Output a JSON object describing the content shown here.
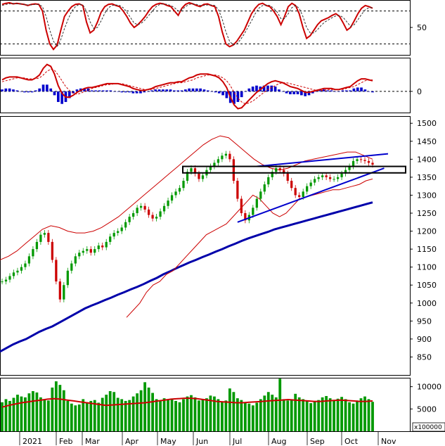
{
  "chart_data": [
    {
      "panel": "stochastic-oscillator",
      "type": "line",
      "y_ticks": [
        "50"
      ],
      "reference_levels": [
        80,
        20
      ],
      "ylim": [
        0,
        100
      ],
      "series": [
        {
          "color": "#cc0000",
          "style": "solid",
          "values": [
            92,
            94,
            95,
            93,
            94,
            93,
            92,
            90,
            92,
            93,
            92,
            80,
            45,
            20,
            10,
            18,
            45,
            70,
            80,
            88,
            92,
            93,
            90,
            60,
            40,
            45,
            60,
            78,
            88,
            92,
            93,
            90,
            88,
            80,
            70,
            58,
            50,
            55,
            62,
            70,
            80,
            88,
            92,
            94,
            93,
            90,
            88,
            80,
            72,
            85,
            92,
            95,
            93,
            90,
            88,
            92,
            93,
            90,
            88,
            70,
            42,
            20,
            15,
            18,
            25,
            35,
            45,
            60,
            75,
            85,
            92,
            94,
            90,
            88,
            80,
            70,
            55,
            70,
            88,
            94,
            90,
            75,
            50,
            30,
            35,
            45,
            55,
            62,
            65,
            68,
            72,
            75,
            70,
            58,
            45,
            50,
            62,
            75,
            85,
            90,
            88,
            85
          ]
        },
        {
          "color": "#333333",
          "style": "dashed",
          "values": [
            90,
            92,
            93,
            94,
            93,
            93,
            92,
            91,
            91,
            92,
            92,
            88,
            70,
            45,
            25,
            15,
            28,
            48,
            65,
            80,
            88,
            92,
            91,
            80,
            60,
            48,
            50,
            62,
            76,
            86,
            90,
            91,
            90,
            86,
            78,
            68,
            58,
            55,
            58,
            64,
            72,
            80,
            88,
            92,
            93,
            92,
            90,
            86,
            80,
            82,
            88,
            92,
            93,
            92,
            90,
            90,
            91,
            91,
            90,
            82,
            65,
            42,
            25,
            18,
            20,
            28,
            38,
            50,
            62,
            75,
            85,
            90,
            91,
            90,
            85,
            78,
            66,
            66,
            75,
            86,
            90,
            85,
            70,
            50,
            40,
            40,
            46,
            54,
            60,
            64,
            68,
            71,
            72,
            68,
            60,
            52,
            55,
            64,
            74,
            82,
            86,
            86
          ]
        }
      ]
    },
    {
      "panel": "macd",
      "type": "line",
      "y_ticks": [
        "0"
      ],
      "ylim": [
        -22,
        35
      ],
      "series": [
        {
          "color": "#cc0000",
          "style": "solid",
          "values": [
            12,
            14,
            15,
            15,
            15,
            14,
            13,
            12,
            12,
            14,
            17,
            24,
            28,
            26,
            18,
            6,
            -2,
            -6,
            -6,
            -4,
            -1,
            1,
            3,
            4,
            4,
            5,
            6,
            7,
            8,
            8,
            8,
            8,
            7,
            6,
            5,
            3,
            2,
            1,
            1,
            2,
            3,
            5,
            6,
            7,
            8,
            9,
            9,
            10,
            10,
            12,
            14,
            15,
            17,
            18,
            18,
            18,
            17,
            16,
            14,
            10,
            4,
            -6,
            -14,
            -18,
            -17,
            -13,
            -9,
            -5,
            -1,
            2,
            5,
            8,
            10,
            11,
            10,
            9,
            7,
            5,
            4,
            3,
            1,
            -1,
            -1,
            0,
            1,
            2,
            3,
            3,
            3,
            2,
            2,
            3,
            4,
            5,
            8,
            11,
            13,
            13,
            12,
            11
          ]
        },
        {
          "color": "#cc0000",
          "style": "dashed",
          "values": [
            10,
            11,
            12,
            13,
            14,
            14,
            14,
            13,
            13,
            13,
            14,
            17,
            21,
            23,
            22,
            17,
            11,
            5,
            1,
            -2,
            -3,
            -2,
            0,
            1,
            3,
            4,
            5,
            6,
            7,
            7,
            8,
            8,
            8,
            7,
            6,
            5,
            4,
            3,
            2,
            2,
            2,
            3,
            4,
            5,
            6,
            7,
            8,
            9,
            9,
            10,
            11,
            12,
            14,
            15,
            16,
            17,
            17,
            17,
            16,
            14,
            11,
            6,
            -1,
            -7,
            -11,
            -13,
            -12,
            -10,
            -7,
            -4,
            -1,
            2,
            4,
            6,
            8,
            9,
            9,
            8,
            7,
            6,
            5,
            4,
            3,
            2,
            1,
            1,
            1,
            2,
            2,
            2,
            2,
            2,
            3,
            4,
            5,
            7,
            9,
            11,
            12,
            12
          ]
        }
      ],
      "histogram": {
        "color": "#0000cc",
        "values": [
          2,
          3,
          3,
          2,
          1,
          0,
          -1,
          -1,
          -1,
          1,
          3,
          7,
          7,
          3,
          -4,
          -11,
          -13,
          -11,
          -7,
          -2,
          2,
          3,
          3,
          3,
          1,
          1,
          1,
          1,
          1,
          1,
          0,
          0,
          -1,
          -1,
          -1,
          -2,
          -2,
          -2,
          -1,
          0,
          1,
          2,
          2,
          2,
          2,
          2,
          1,
          1,
          1,
          2,
          3,
          3,
          3,
          3,
          2,
          1,
          0,
          -1,
          -2,
          -4,
          -7,
          -12,
          -13,
          -11,
          -6,
          0,
          3,
          5,
          6,
          5,
          6,
          6,
          6,
          5,
          2,
          0,
          -2,
          -3,
          -3,
          -3,
          -4,
          -5,
          -4,
          -2,
          0,
          1,
          2,
          1,
          1,
          0,
          0,
          1,
          1,
          1,
          3,
          4,
          4,
          2,
          0,
          -1
        ]
      }
    },
    {
      "panel": "price",
      "type": "candlestick",
      "y_ticks": [
        "1500",
        "1450",
        "1400",
        "1350",
        "1300",
        "1250",
        "1200",
        "1150",
        "1100",
        "1050",
        "1000",
        "950",
        "900",
        "850"
      ],
      "ylim": [
        800,
        1520
      ],
      "x_labels": [
        "2021",
        "Feb",
        "Mar",
        "Apr",
        "May",
        "Jun",
        "Jul",
        "Aug",
        "Sep",
        "Oct",
        "Nov"
      ],
      "close": [
        1060,
        1065,
        1075,
        1085,
        1090,
        1100,
        1110,
        1130,
        1150,
        1170,
        1190,
        1195,
        1170,
        1120,
        1060,
        1010,
        1050,
        1090,
        1110,
        1130,
        1140,
        1145,
        1150,
        1140,
        1150,
        1160,
        1155,
        1170,
        1185,
        1195,
        1200,
        1210,
        1225,
        1240,
        1250,
        1265,
        1270,
        1260,
        1245,
        1235,
        1240,
        1255,
        1270,
        1285,
        1300,
        1310,
        1320,
        1340,
        1365,
        1375,
        1360,
        1345,
        1355,
        1370,
        1380,
        1390,
        1400,
        1410,
        1415,
        1400,
        1340,
        1290,
        1250,
        1230,
        1245,
        1265,
        1290,
        1310,
        1330,
        1350,
        1365,
        1375,
        1370,
        1360,
        1340,
        1320,
        1300,
        1295,
        1310,
        1325,
        1335,
        1345,
        1350,
        1355,
        1350,
        1345,
        1345,
        1350,
        1360,
        1370,
        1380,
        1395,
        1400,
        1398,
        1395,
        1390,
        1385
      ],
      "ma200": [
        865,
        875,
        885,
        893,
        900,
        910,
        920,
        928,
        935,
        945,
        955,
        965,
        975,
        985,
        993,
        1000,
        1008,
        1015,
        1023,
        1030,
        1038,
        1045,
        1053,
        1062,
        1070,
        1080,
        1088,
        1097,
        1105,
        1113,
        1120,
        1128,
        1135,
        1143,
        1150,
        1158,
        1165,
        1173,
        1180,
        1186,
        1192,
        1198,
        1205,
        1210,
        1215,
        1220,
        1225,
        1230,
        1235,
        1240,
        1245,
        1250,
        1255,
        1260,
        1265,
        1270,
        1275,
        1280
      ],
      "bollinger_upper": [
        1120,
        1130,
        1145,
        1165,
        1185,
        1205,
        1215,
        1210,
        1200,
        1195,
        1195,
        1200,
        1210,
        1225,
        1240,
        1260,
        1280,
        1300,
        1320,
        1340,
        1360,
        1380,
        1400,
        1420,
        1440,
        1455,
        1465,
        1460,
        1440,
        1420,
        1400,
        1385,
        1375,
        1370,
        1375,
        1385,
        1395,
        1400,
        1405,
        1410,
        1415,
        1420,
        1420,
        1410,
        1400
      ],
      "bollinger_lower": [
        960,
        980,
        1000,
        1030,
        1050,
        1060,
        1080,
        1090,
        1110,
        1130,
        1150,
        1170,
        1190,
        1200,
        1210,
        1220,
        1240,
        1260,
        1280,
        1300,
        1290,
        1270,
        1250,
        1240,
        1250,
        1270,
        1290,
        1295,
        1300,
        1305,
        1310,
        1315,
        1315,
        1320,
        1325,
        1330,
        1340,
        1345
      ],
      "trendlines": [
        {
          "name": "",
          "color": "#0000cc",
          "from": [
            1230,
            1380
          ],
          "to": [
            1410,
            1415
          ]
        },
        {
          "name": "",
          "color": "#0000cc",
          "from": [
            1225,
            1380
          ],
          "to": [
            1245,
            1375
          ]
        }
      ],
      "resistance_zone": [
        1362,
        1380
      ]
    },
    {
      "panel": "volume",
      "type": "bar",
      "y_ticks": [
        "10000",
        "5000"
      ],
      "unit_label": "x100000",
      "ylim": [
        0,
        12000
      ],
      "bar_color": "#009900",
      "ma_color": "#cc0000",
      "values": [
        6500,
        7200,
        6800,
        7500,
        8200,
        7800,
        7600,
        8500,
        9000,
        8700,
        7600,
        7200,
        6900,
        9800,
        11200,
        10400,
        9200,
        6800,
        6200,
        5800,
        6000,
        7200,
        6500,
        6800,
        7000,
        6400,
        7500,
        8200,
        9000,
        8800,
        7500,
        7200,
        6800,
        7000,
        7800,
        8500,
        9200,
        11000,
        9800,
        8600,
        7200,
        6800,
        7400,
        7000,
        7300,
        6800,
        6500,
        7200,
        7800,
        8100,
        7600,
        6900,
        7200,
        7400,
        8000,
        7800,
        7200,
        6600,
        6900,
        9600,
        8800,
        7400,
        7000,
        6500,
        6200,
        5800,
        6400,
        7200,
        8000,
        8800,
        8200,
        7600,
        11800,
        7200,
        6900,
        7200,
        8400,
        7600,
        7200,
        6800,
        6300,
        6700,
        7000,
        7600,
        7900,
        7400,
        6900,
        7300,
        7700,
        7200,
        6500,
        6200,
        6900,
        7400,
        7800,
        7200,
        6600
      ],
      "ma": [
        5400,
        5800,
        6100,
        6400,
        6600,
        6800,
        7000,
        7200,
        7300,
        7200,
        7000,
        6800,
        6600,
        6400,
        6200,
        6000,
        5800,
        5900,
        6000,
        6100,
        6200,
        6300,
        6400,
        6600,
        6800,
        7000,
        7200,
        7300,
        7400,
        7400,
        7300,
        7100,
        6900,
        6700,
        6600,
        6500,
        6400,
        6400,
        6500,
        6600,
        6700,
        6800,
        6900,
        7000,
        7100,
        7000,
        6900,
        6800,
        6700,
        6700,
        6800,
        6900,
        7000,
        6900,
        6800,
        6700,
        6700,
        6800
      ]
    }
  ]
}
